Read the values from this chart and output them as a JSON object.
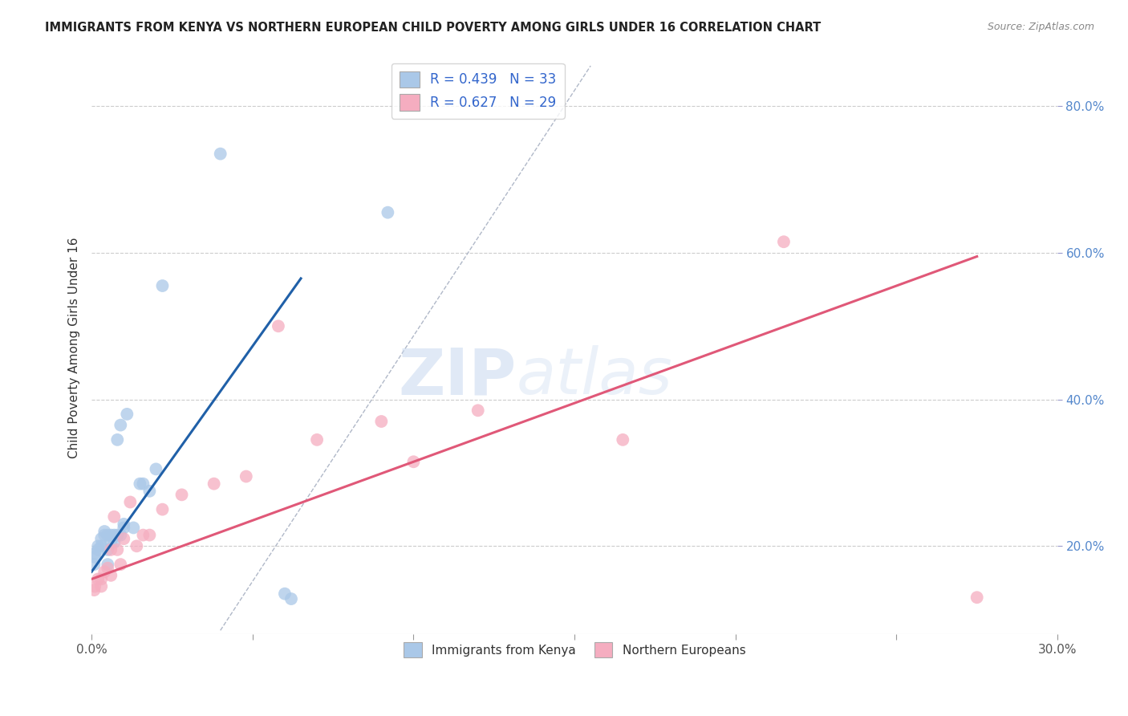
{
  "title": "IMMIGRANTS FROM KENYA VS NORTHERN EUROPEAN CHILD POVERTY AMONG GIRLS UNDER 16 CORRELATION CHART",
  "source": "Source: ZipAtlas.com",
  "ylabel": "Child Poverty Among Girls Under 16",
  "xlim": [
    0.0,
    0.3
  ],
  "ylim": [
    0.08,
    0.86
  ],
  "yticks": [
    0.2,
    0.4,
    0.6,
    0.8
  ],
  "yticklabels": [
    "20.0%",
    "40.0%",
    "60.0%",
    "80.0%"
  ],
  "xtick_positions": [
    0.0,
    0.05,
    0.1,
    0.15,
    0.2,
    0.25,
    0.3
  ],
  "xticklabels": [
    "0.0%",
    "",
    "",
    "",
    "",
    "",
    "30.0%"
  ],
  "legend1_label": "R = 0.439   N = 33",
  "legend2_label": "R = 0.627   N = 29",
  "legend_label1": "Immigrants from Kenya",
  "legend_label2": "Northern Europeans",
  "blue_color": "#aac8e8",
  "pink_color": "#f5adc0",
  "blue_line_color": "#2060a8",
  "pink_line_color": "#e05878",
  "watermark": "ZIPatlas",
  "blue_scatter_x": [
    0.0008,
    0.001,
    0.001,
    0.002,
    0.002,
    0.003,
    0.003,
    0.004,
    0.004,
    0.005,
    0.005,
    0.005,
    0.006,
    0.006,
    0.007,
    0.007,
    0.008,
    0.008,
    0.009,
    0.009,
    0.01,
    0.01,
    0.011,
    0.013,
    0.015,
    0.016,
    0.018,
    0.02,
    0.022,
    0.04,
    0.06,
    0.062,
    0.092
  ],
  "blue_scatter_y": [
    0.175,
    0.185,
    0.19,
    0.195,
    0.2,
    0.2,
    0.21,
    0.215,
    0.22,
    0.215,
    0.195,
    0.175,
    0.205,
    0.215,
    0.205,
    0.215,
    0.215,
    0.345,
    0.215,
    0.365,
    0.225,
    0.23,
    0.38,
    0.225,
    0.285,
    0.285,
    0.275,
    0.305,
    0.555,
    0.735,
    0.135,
    0.128,
    0.655
  ],
  "pink_scatter_x": [
    0.0008,
    0.001,
    0.002,
    0.003,
    0.003,
    0.004,
    0.005,
    0.006,
    0.006,
    0.007,
    0.008,
    0.009,
    0.01,
    0.012,
    0.014,
    0.016,
    0.018,
    0.022,
    0.028,
    0.038,
    0.048,
    0.058,
    0.07,
    0.09,
    0.1,
    0.12,
    0.165,
    0.215,
    0.275
  ],
  "pink_scatter_y": [
    0.14,
    0.145,
    0.155,
    0.145,
    0.155,
    0.165,
    0.17,
    0.16,
    0.195,
    0.24,
    0.195,
    0.175,
    0.21,
    0.26,
    0.2,
    0.215,
    0.215,
    0.25,
    0.27,
    0.285,
    0.295,
    0.5,
    0.345,
    0.37,
    0.315,
    0.385,
    0.345,
    0.615,
    0.13
  ],
  "blue_line_x": [
    0.0,
    0.065
  ],
  "blue_line_y": [
    0.165,
    0.565
  ],
  "pink_line_x": [
    0.0,
    0.275
  ],
  "pink_line_y": [
    0.155,
    0.595
  ],
  "ref_line_x": [
    0.04,
    0.155
  ],
  "ref_line_y": [
    0.085,
    0.855
  ]
}
